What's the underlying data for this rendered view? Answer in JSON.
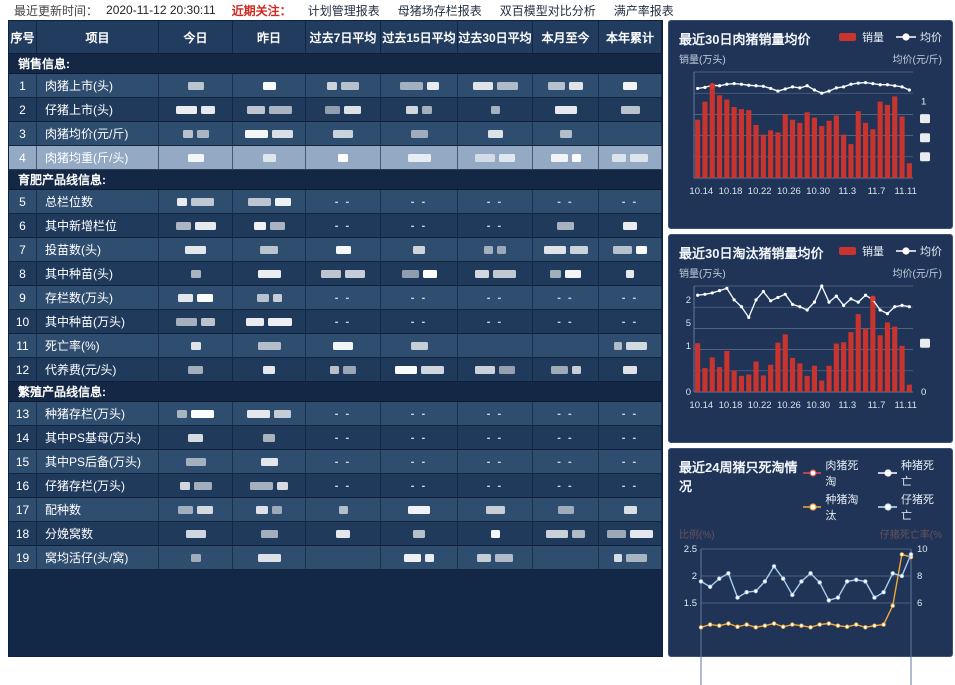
{
  "topbar": {
    "updated_label": "最近更新时间：",
    "updated_time": "2020-11-12 20:30:11",
    "focus_label": "近期关注：",
    "tabs": [
      "计划管理报表",
      "母猪场存栏报表",
      "双百模型对比分析",
      "满产率报表"
    ]
  },
  "table": {
    "headers": [
      "序号",
      "项目",
      "今日",
      "昨日",
      "过去7日平均",
      "过去15日平均",
      "过去30日平均",
      "本月至今",
      "本年累计"
    ],
    "rows": [
      {
        "type": "section",
        "label": "销售信息:"
      },
      {
        "type": "row",
        "num": "1",
        "label": "肉猪上市(头)",
        "cells": [
          "r",
          "r",
          "r",
          "r",
          "r",
          "r",
          "r"
        ]
      },
      {
        "type": "row",
        "num": "2",
        "label": "仔猪上市(头)",
        "cells": [
          "r",
          "r",
          "r",
          "r",
          "r",
          "r",
          "r"
        ]
      },
      {
        "type": "row",
        "num": "3",
        "label": "肉猪均价(元/斤)",
        "cells": [
          "r",
          "r",
          "r",
          "r",
          "r",
          "r",
          ""
        ]
      },
      {
        "type": "row",
        "num": "4",
        "label": "肉猪均重(斤/头)",
        "highlight": true,
        "cells": [
          "r",
          "r",
          "r",
          "r",
          "r",
          "r",
          "r"
        ]
      },
      {
        "type": "section",
        "label": "育肥产品线信息:"
      },
      {
        "type": "row",
        "num": "5",
        "label": "总栏位数",
        "cells": [
          "r",
          "r",
          "d",
          "d",
          "d",
          "d",
          "d"
        ]
      },
      {
        "type": "row",
        "num": "6",
        "label": "其中新增栏位",
        "cells": [
          "r",
          "r",
          "d",
          "d",
          "d",
          "r",
          "r"
        ]
      },
      {
        "type": "row",
        "num": "7",
        "label": "投苗数(头)",
        "cells": [
          "r",
          "r",
          "r",
          "r",
          "r",
          "r",
          "r"
        ]
      },
      {
        "type": "row",
        "num": "8",
        "label": "其中种苗(头)",
        "cells": [
          "r",
          "r",
          "r",
          "r",
          "r",
          "r",
          "r"
        ]
      },
      {
        "type": "row",
        "num": "9",
        "label": "存栏数(万头)",
        "cells": [
          "r",
          "r",
          "d",
          "d",
          "d",
          "d",
          "d"
        ]
      },
      {
        "type": "row",
        "num": "10",
        "label": "其中种苗(万头)",
        "cells": [
          "r",
          "r",
          "d",
          "d",
          "d",
          "d",
          "d"
        ]
      },
      {
        "type": "row",
        "num": "11",
        "label": "死亡率(%)",
        "cells": [
          "r",
          "r",
          "r",
          "r",
          "",
          "",
          "r"
        ]
      },
      {
        "type": "row",
        "num": "12",
        "label": "代养费(元/头)",
        "cells": [
          "r",
          "r",
          "r",
          "r",
          "r",
          "r",
          "r"
        ]
      },
      {
        "type": "section",
        "label": "繁殖产品线信息:"
      },
      {
        "type": "row",
        "num": "13",
        "label": "种猪存栏(万头)",
        "cells": [
          "r",
          "r",
          "d",
          "d",
          "d",
          "d",
          "d"
        ]
      },
      {
        "type": "row",
        "num": "14",
        "label": "其中PS基母(万头)",
        "cells": [
          "r",
          "r",
          "d",
          "d",
          "d",
          "d",
          "d"
        ]
      },
      {
        "type": "row",
        "num": "15",
        "label": "其中PS后备(万头)",
        "cells": [
          "r",
          "r",
          "d",
          "d",
          "d",
          "d",
          "d"
        ]
      },
      {
        "type": "row",
        "num": "16",
        "label": "仔猪存栏(万头)",
        "cells": [
          "r",
          "r",
          "d",
          "d",
          "d",
          "d",
          "d"
        ]
      },
      {
        "type": "row",
        "num": "17",
        "label": "配种数",
        "cells": [
          "r",
          "r",
          "r",
          "r",
          "r",
          "r",
          "r"
        ]
      },
      {
        "type": "row",
        "num": "18",
        "label": "分娩窝数",
        "cells": [
          "r",
          "r",
          "r",
          "r",
          "r",
          "r",
          "r"
        ]
      },
      {
        "type": "row",
        "num": "19",
        "label": "窝均活仔(头/窝)",
        "cells": [
          "r",
          "r",
          "",
          "r",
          "r",
          "",
          "r"
        ]
      }
    ]
  },
  "colors": {
    "bar": "#c9342f",
    "avg_line": "#eef4fb",
    "grid": "rgba(255,255,255,0.30)",
    "axis": "#62799c",
    "max_marker": "#e0372c",
    "piglet_death_line": "#a9cdec",
    "sow_cull_line": "#efa93a",
    "xlabel": "#dbe4ee"
  },
  "chart_data": [
    {
      "type": "bar",
      "kind": "bar-line",
      "title": "最近30日肉猪销量均价",
      "legend": [
        {
          "label": "销量",
          "icon": "bar"
        },
        {
          "label": "均价",
          "icon": "line"
        }
      ],
      "ylabel_left": "销量(万头)",
      "ylabel_right": "均价(元/斤)",
      "x_tick_labels": [
        "10.14",
        "10.18",
        "10.22",
        "10.26",
        "10.30",
        "11.3",
        "11.7",
        "11.11"
      ],
      "x_tick_indices": [
        0,
        4,
        8,
        12,
        16,
        20,
        24,
        28
      ],
      "bars_rel": [
        0.55,
        0.72,
        0.87,
        0.78,
        0.74,
        0.67,
        0.65,
        0.64,
        0.5,
        0.41,
        0.45,
        0.43,
        0.6,
        0.55,
        0.52,
        0.62,
        0.57,
        0.49,
        0.54,
        0.59,
        0.41,
        0.32,
        0.63,
        0.52,
        0.46,
        0.72,
        0.69,
        0.77,
        0.58,
        0.14
      ],
      "line_rel": [
        0.845,
        0.855,
        0.875,
        0.87,
        0.885,
        0.89,
        0.885,
        0.875,
        0.87,
        0.865,
        0.845,
        0.82,
        0.84,
        0.86,
        0.85,
        0.87,
        0.83,
        0.8,
        0.82,
        0.85,
        0.86,
        0.885,
        0.895,
        0.9,
        0.89,
        0.88,
        0.88,
        0.87,
        0.86,
        0.83
      ],
      "left_ticks": [],
      "right_ticks": [
        {
          "frac": 0.72,
          "label": "1"
        }
      ],
      "right_redacted_fracs": [
        0.56,
        0.38,
        0.2
      ],
      "max_bar_index": 2
    },
    {
      "type": "bar",
      "kind": "bar-line",
      "title": "最近30日淘汰猪销量均价",
      "legend": [
        {
          "label": "销量",
          "icon": "bar"
        },
        {
          "label": "均价",
          "icon": "line"
        }
      ],
      "ylabel_left": "销量(万头)",
      "ylabel_right": "均价(元/斤)",
      "ymax": 2.3,
      "x_tick_labels": [
        "10.14",
        "10.18",
        "10.22",
        "10.26",
        "10.30",
        "11.3",
        "11.7",
        "11.11"
      ],
      "x_tick_indices": [
        0,
        4,
        8,
        12,
        16,
        20,
        24,
        28
      ],
      "bars": [
        1.06,
        0.52,
        0.75,
        0.54,
        0.89,
        0.47,
        0.35,
        0.38,
        0.66,
        0.36,
        0.59,
        1.07,
        1.25,
        0.74,
        0.62,
        0.35,
        0.57,
        0.25,
        0.57,
        1.05,
        1.08,
        1.3,
        1.69,
        1.37,
        2.03,
        1.23,
        1.51,
        1.42,
        1.0,
        0.16
      ],
      "line": [
        2.1,
        2.12,
        2.15,
        2.2,
        2.25,
        2.0,
        1.85,
        1.62,
        2.0,
        2.18,
        1.98,
        2.05,
        2.12,
        1.9,
        1.85,
        1.78,
        1.95,
        2.3,
        1.95,
        2.08,
        1.88,
        2.02,
        1.95,
        2.1,
        2.0,
        1.78,
        1.7,
        1.85,
        1.88,
        1.85
      ],
      "left_tick_values": [
        0,
        0.5,
        1,
        1.5,
        2
      ],
      "left_tick_labels": [
        "0",
        "",
        "1",
        "5",
        "2"
      ],
      "right_ticks": [
        {
          "frac": 0.0,
          "label": "0"
        }
      ],
      "right_redacted_fracs": [
        0.46
      ],
      "max_bar_index": 24
    },
    {
      "type": "line",
      "kind": "multi-line",
      "title": "最近24周猪只死淘情况",
      "legend": [
        {
          "label": "肉猪死淘",
          "color": "#e0504a"
        },
        {
          "label": "种猪死亡",
          "color": "#ffffff"
        },
        {
          "label": "种猪淘汰",
          "color": "#efa93a"
        },
        {
          "label": "仔猪死亡",
          "color": "#cde4f5"
        }
      ],
      "ylabel_left": "比例(%)",
      "ylabel_right": "仔猪死亡率(%",
      "left_tick_labels": [
        "2.5",
        "2",
        "1.5"
      ],
      "left_tick_values": [
        2.5,
        2.0,
        1.5
      ],
      "right_tick_labels": [
        "10",
        "8",
        "6"
      ],
      "series": [
        {
          "name": "仔猪死亡",
          "color": "#a9cdec",
          "values": [
            1.9,
            1.8,
            1.95,
            2.05,
            1.6,
            1.7,
            1.72,
            1.9,
            2.18,
            1.95,
            1.65,
            1.9,
            2.05,
            1.88,
            1.55,
            1.6,
            1.9,
            1.93,
            1.9,
            1.6,
            1.7,
            2.05,
            2.0,
            2.4
          ]
        },
        {
          "name": "种猪淘汰",
          "color": "#efa93a",
          "values": [
            1.05,
            1.1,
            1.08,
            1.12,
            1.06,
            1.1,
            1.05,
            1.08,
            1.12,
            1.06,
            1.1,
            1.08,
            1.05,
            1.1,
            1.12,
            1.08,
            1.06,
            1.1,
            1.05,
            1.08,
            1.1,
            1.45,
            2.4,
            2.35
          ]
        }
      ]
    }
  ]
}
